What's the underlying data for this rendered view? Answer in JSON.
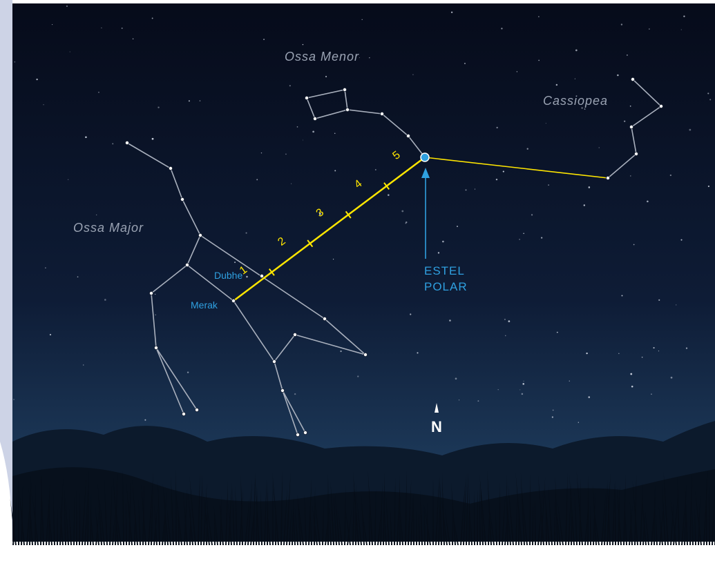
{
  "constellations": [
    {
      "label": "Ossa Menor"
    },
    {
      "label": "Cassiopea"
    },
    {
      "label": "Ossa Major"
    }
  ],
  "stars": [
    {
      "label": "Dubhe"
    },
    {
      "label": "Merak"
    }
  ],
  "distance_marks": [
    "1",
    "2",
    "3",
    "4",
    "5"
  ],
  "pole_star": {
    "label_lines": [
      "ESTEL",
      "POLAR"
    ]
  },
  "compass": {
    "label": "N"
  }
}
